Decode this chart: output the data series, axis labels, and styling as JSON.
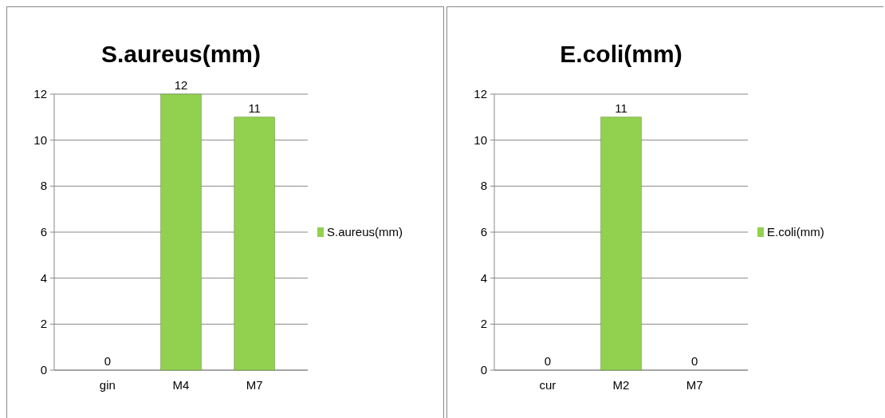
{
  "chart_data": [
    {
      "type": "bar",
      "title": "S.aureus(mm)",
      "categories": [
        "gin",
        "M4",
        "M7"
      ],
      "series": [
        {
          "name": "S.aureus(mm)",
          "color": "#92d050",
          "values": [
            0,
            12,
            11
          ]
        }
      ],
      "ylim": [
        0,
        12
      ],
      "yticks": [
        0,
        2,
        4,
        6,
        8,
        10,
        12
      ],
      "grid": "y",
      "legend": "right",
      "data_labels": true
    },
    {
      "type": "bar",
      "title": "E.coli(mm)",
      "categories": [
        "cur",
        "M2",
        "M7"
      ],
      "series": [
        {
          "name": "E.coli(mm)",
          "color": "#92d050",
          "values": [
            0,
            11,
            0
          ]
        }
      ],
      "ylim": [
        0,
        12
      ],
      "yticks": [
        0,
        2,
        4,
        6,
        8,
        10,
        12
      ],
      "grid": "y",
      "legend": "right",
      "data_labels": true
    }
  ]
}
